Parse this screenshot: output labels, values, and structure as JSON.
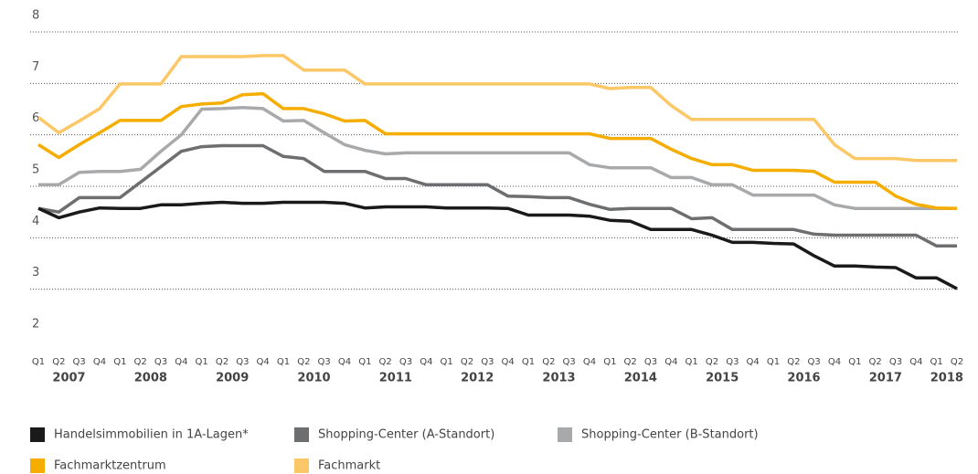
{
  "chart_data": {
    "type": "line",
    "categories": [
      "Q1",
      "Q2",
      "Q3",
      "Q4",
      "Q1",
      "Q2",
      "Q3",
      "Q4",
      "Q1",
      "Q2",
      "Q3",
      "Q4",
      "Q1",
      "Q2",
      "Q3",
      "Q4",
      "Q1",
      "Q2",
      "Q3",
      "Q4",
      "Q1",
      "Q2",
      "Q3",
      "Q4",
      "Q1",
      "Q2",
      "Q3",
      "Q4",
      "Q1",
      "Q2",
      "Q3",
      "Q4",
      "Q1",
      "Q2",
      "Q3",
      "Q4",
      "Q1",
      "Q2",
      "Q3",
      "Q4",
      "Q1",
      "Q2",
      "Q3",
      "Q4",
      "Q1",
      "Q2"
    ],
    "years": [
      "2007",
      "2008",
      "2009",
      "2010",
      "2011",
      "2012",
      "2013",
      "2014",
      "2015",
      "2016",
      "2017",
      "2018"
    ],
    "ylim": [
      2,
      8
    ],
    "yticks": [
      2,
      3,
      4,
      5,
      6,
      7,
      8
    ],
    "grid": true,
    "legend": "bottom",
    "series": [
      {
        "name": "Handelsimmobilien in 1A-Lagen*",
        "color": "#1a1a1a",
        "values": [
          4.57,
          4.39,
          4.5,
          4.58,
          4.57,
          4.57,
          4.64,
          4.64,
          4.67,
          4.69,
          4.67,
          4.67,
          4.69,
          4.69,
          4.69,
          4.67,
          4.58,
          4.6,
          4.6,
          4.6,
          4.58,
          4.58,
          4.58,
          4.57,
          4.44,
          4.44,
          4.44,
          4.42,
          4.34,
          4.32,
          4.16,
          4.16,
          4.16,
          4.05,
          3.91,
          3.91,
          3.89,
          3.88,
          3.65,
          3.45,
          3.45,
          3.43,
          3.42,
          3.22,
          3.22,
          3.01
        ]
      },
      {
        "name": "Shopping-Center (A-Standort)",
        "color": "#6d6e70",
        "values": [
          4.57,
          4.5,
          4.78,
          4.78,
          4.78,
          5.08,
          5.38,
          5.68,
          5.77,
          5.79,
          5.79,
          5.79,
          5.58,
          5.54,
          5.29,
          5.29,
          5.29,
          5.15,
          5.15,
          5.03,
          5.03,
          5.03,
          5.03,
          4.81,
          4.8,
          4.78,
          4.78,
          4.65,
          4.55,
          4.57,
          4.57,
          4.57,
          4.37,
          4.39,
          4.16,
          4.16,
          4.16,
          4.16,
          4.07,
          4.05,
          4.05,
          4.05,
          4.05,
          4.05,
          3.84,
          3.84
        ]
      },
      {
        "name": "Shopping-Center (B-Standort)",
        "color": "#a8a9ab",
        "values": [
          5.03,
          5.03,
          5.27,
          5.29,
          5.29,
          5.33,
          5.68,
          6.0,
          6.5,
          6.51,
          6.53,
          6.51,
          6.27,
          6.28,
          6.04,
          5.81,
          5.7,
          5.63,
          5.65,
          5.65,
          5.65,
          5.65,
          5.65,
          5.65,
          5.65,
          5.65,
          5.65,
          5.42,
          5.36,
          5.36,
          5.36,
          5.17,
          5.17,
          5.03,
          5.03,
          4.83,
          4.83,
          4.83,
          4.83,
          4.64,
          4.57,
          4.57,
          4.57,
          4.57,
          4.57,
          4.57
        ]
      },
      {
        "name": "Fachmarktzentrum",
        "color": "#f5ad00",
        "values": [
          5.81,
          5.56,
          5.81,
          6.04,
          6.28,
          6.28,
          6.28,
          6.55,
          6.6,
          6.62,
          6.78,
          6.8,
          6.51,
          6.51,
          6.41,
          6.27,
          6.28,
          6.02,
          6.02,
          6.02,
          6.02,
          6.02,
          6.02,
          6.02,
          6.02,
          6.02,
          6.02,
          6.02,
          5.93,
          5.93,
          5.93,
          5.72,
          5.54,
          5.42,
          5.42,
          5.31,
          5.31,
          5.31,
          5.29,
          5.08,
          5.08,
          5.08,
          4.81,
          4.65,
          4.58,
          4.57
        ]
      },
      {
        "name": "Fachmarkt",
        "color": "#fcc766",
        "values": [
          6.34,
          6.04,
          6.27,
          6.51,
          6.99,
          6.99,
          6.99,
          7.52,
          7.52,
          7.52,
          7.52,
          7.54,
          7.54,
          7.26,
          7.26,
          7.26,
          6.99,
          6.99,
          6.99,
          6.99,
          6.99,
          6.99,
          6.99,
          6.99,
          6.99,
          6.99,
          6.99,
          6.99,
          6.9,
          6.92,
          6.92,
          6.57,
          6.3,
          6.3,
          6.3,
          6.3,
          6.3,
          6.3,
          6.3,
          5.81,
          5.54,
          5.54,
          5.54,
          5.5,
          5.5,
          5.5
        ]
      }
    ]
  }
}
